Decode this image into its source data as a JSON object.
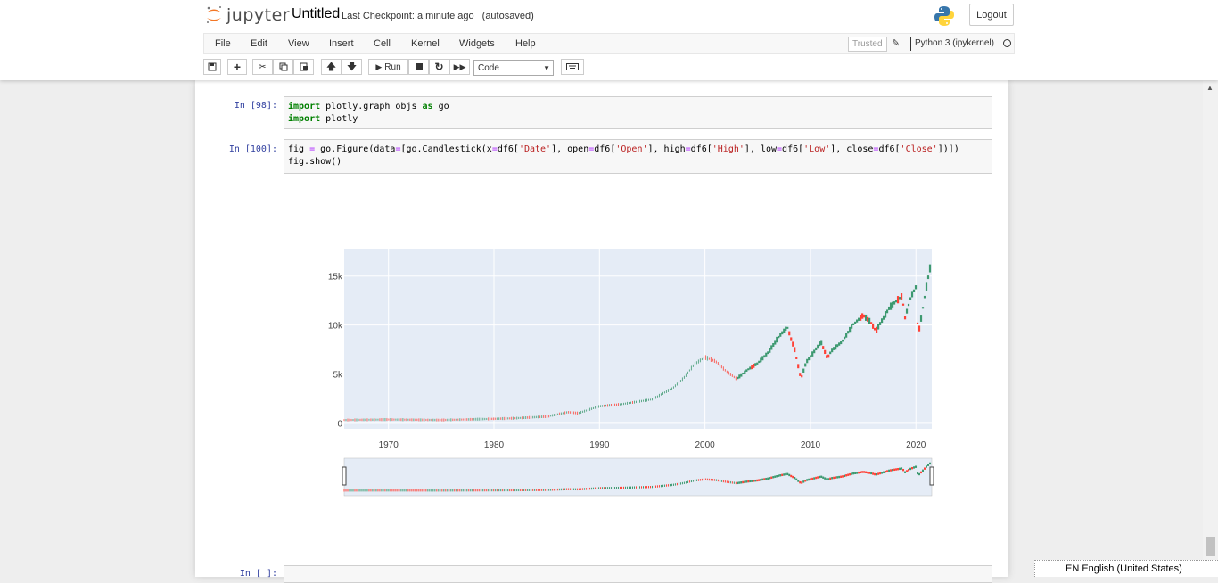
{
  "app": {
    "logo_text": "jupyter",
    "notebook_name": "Untitled",
    "checkpoint": "Last Checkpoint: a minute ago",
    "autosave": "(autosaved)",
    "logout": "Logout"
  },
  "menu": {
    "items": [
      "File",
      "Edit",
      "View",
      "Insert",
      "Cell",
      "Kernel",
      "Widgets",
      "Help"
    ],
    "trusted": "Trusted",
    "kernel": "Python 3 (ipykernel)"
  },
  "toolbar": {
    "run_label": "Run",
    "cell_type": "Code"
  },
  "cells": [
    {
      "prompt": "In [98]:",
      "lines": [
        "import plotly.graph_objs as go",
        "import plotly"
      ]
    },
    {
      "prompt": "In [100]:",
      "lines": [
        "fig = go.Figure(data=[go.Candlestick(x=df6['Date'], open=df6['Open'], high=df6['High'], low=df6['Low'], close=df6['Close'])])",
        "fig.show()"
      ]
    },
    {
      "prompt": "In [ ]:",
      "lines": [
        ""
      ]
    }
  ],
  "status_tip": "EN English (United States)",
  "colors": {
    "plot_bg": "#e5ecf6",
    "increasing": "#3d9970",
    "decreasing": "#ff4136",
    "prompt": "#303f9f",
    "keyword": "#008000",
    "string": "#ba2121"
  },
  "chart_data": {
    "type": "candlestick",
    "x_ticks": [
      "1970",
      "1980",
      "1990",
      "2000",
      "2010",
      "2020"
    ],
    "y_ticks": [
      "0",
      "5k",
      "10k",
      "15k"
    ],
    "xlim": [
      1965.8,
      2021.5
    ],
    "ylim": [
      -600,
      17800
    ],
    "grid": true,
    "rangeslider": true,
    "close_path": [
      [
        1965.8,
        300
      ],
      [
        1970,
        350
      ],
      [
        1975,
        300
      ],
      [
        1980,
        420
      ],
      [
        1982,
        480
      ],
      [
        1985,
        650
      ],
      [
        1987,
        1100
      ],
      [
        1988,
        1000
      ],
      [
        1990,
        1700
      ],
      [
        1992,
        1900
      ],
      [
        1995,
        2400
      ],
      [
        1997,
        3600
      ],
      [
        1998,
        4600
      ],
      [
        1999,
        6000
      ],
      [
        2000,
        6700
      ],
      [
        2001,
        6300
      ],
      [
        2002,
        5300
      ],
      [
        2003,
        4500
      ],
      [
        2004,
        5400
      ],
      [
        2005,
        6100
      ],
      [
        2006,
        7200
      ],
      [
        2007,
        8800
      ],
      [
        2007.8,
        9800
      ],
      [
        2008.5,
        7500
      ],
      [
        2009.1,
        4500
      ],
      [
        2009.6,
        6200
      ],
      [
        2010.3,
        7200
      ],
      [
        2011,
        8300
      ],
      [
        2011.6,
        6600
      ],
      [
        2012,
        7400
      ],
      [
        2013,
        8300
      ],
      [
        2014,
        10000
      ],
      [
        2015,
        11000
      ],
      [
        2015.7,
        10300
      ],
      [
        2016.2,
        9400
      ],
      [
        2016.8,
        10500
      ],
      [
        2017.5,
        11800
      ],
      [
        2018.7,
        13000
      ],
      [
        2018.95,
        10700
      ],
      [
        2019.5,
        12800
      ],
      [
        2020,
        13900
      ],
      [
        2020.2,
        8900
      ],
      [
        2020.6,
        11400
      ],
      [
        2021,
        14000
      ],
      [
        2021.5,
        16700
      ]
    ]
  }
}
